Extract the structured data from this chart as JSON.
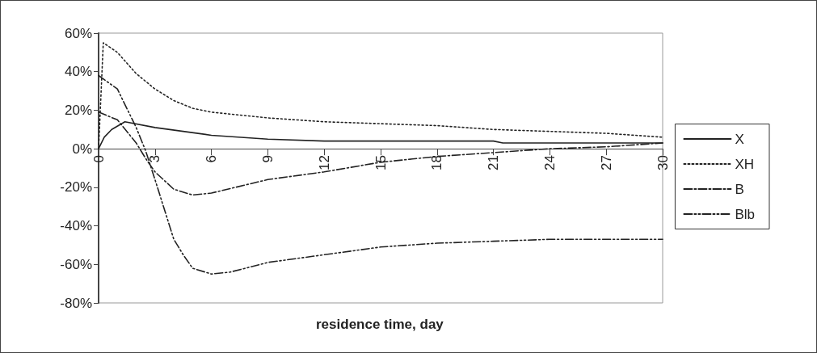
{
  "chart_data": {
    "type": "line",
    "xlabel": "residence time, day",
    "xlim": [
      0,
      30
    ],
    "xticks": [
      0,
      3,
      6,
      9,
      12,
      15,
      18,
      21,
      24,
      27,
      30
    ],
    "ylim": [
      -80,
      60
    ],
    "yticks": [
      {
        "value": -80,
        "label": "-80%"
      },
      {
        "value": -60,
        "label": "-60%"
      },
      {
        "value": -40,
        "label": "-40%"
      },
      {
        "value": -20,
        "label": "-20%"
      },
      {
        "value": 0,
        "label": "0%"
      },
      {
        "value": 20,
        "label": "20%"
      },
      {
        "value": 40,
        "label": "40%"
      },
      {
        "value": 60,
        "label": "60%"
      }
    ],
    "grid": false,
    "legend": "right",
    "marker": "none",
    "series": [
      {
        "name": "X",
        "color": "#222222",
        "line_style": "solid",
        "x": [
          0,
          0.3,
          0.7,
          1.4,
          3,
          6,
          9,
          12,
          15,
          21,
          21.5,
          30
        ],
        "values": [
          0,
          6,
          10,
          14,
          11,
          7,
          5,
          4,
          4,
          4,
          3,
          3
        ]
      },
      {
        "name": "XH",
        "color": "#222222",
        "line_style": "dotted",
        "x": [
          0,
          0.25,
          1,
          2,
          3,
          4,
          5,
          6,
          9,
          12,
          15,
          18,
          21,
          24,
          27,
          30
        ],
        "values": [
          0,
          55,
          50,
          39,
          31,
          25,
          21,
          19,
          16,
          14,
          13,
          12,
          10,
          9,
          8,
          6
        ]
      },
      {
        "name": "B",
        "color": "#222222",
        "line_style": "dashdot",
        "x": [
          0,
          1,
          2,
          2.5,
          3,
          4,
          5,
          6,
          9,
          12,
          15,
          18,
          21,
          24,
          27,
          30
        ],
        "values": [
          19,
          15,
          3,
          -5,
          -12,
          -21,
          -24,
          -23,
          -16,
          -12,
          -7,
          -4,
          -2,
          0,
          1,
          3
        ]
      },
      {
        "name": "Blb",
        "color": "#222222",
        "line_style": "dashdotdot",
        "x": [
          0,
          1,
          2,
          2.5,
          3,
          4,
          4.5,
          5,
          6,
          7,
          9,
          12,
          15,
          18,
          21,
          24,
          27,
          30
        ],
        "values": [
          38,
          31,
          11,
          -1,
          -16,
          -47,
          -55,
          -62,
          -65,
          -64,
          -59,
          -55,
          -51,
          -49,
          -48,
          -47,
          -47,
          -47
        ]
      }
    ]
  }
}
